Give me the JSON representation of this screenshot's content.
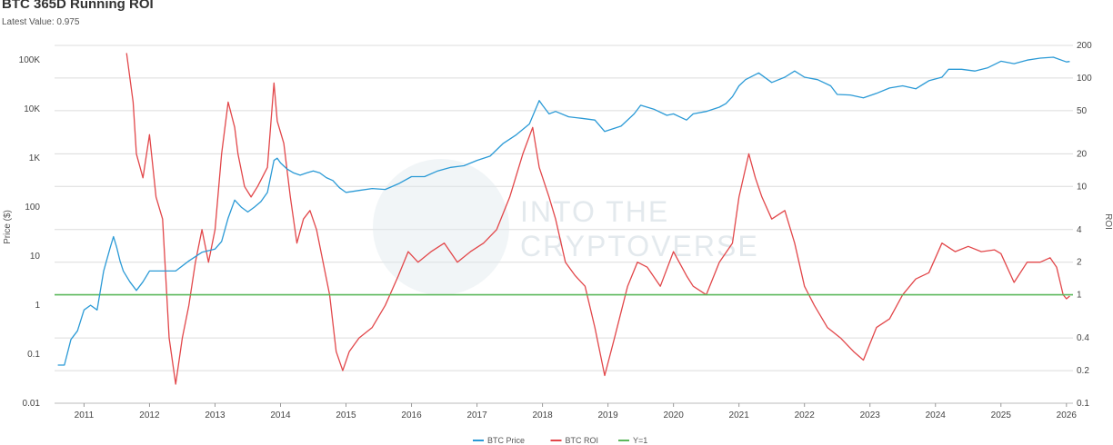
{
  "header": {
    "title": "BTC 365D Running ROI",
    "subtitle": "Latest Value: 0.975"
  },
  "watermark": {
    "line1": "INTO THE",
    "line2": "CRYPTOVERSE"
  },
  "chart_data": {
    "type": "line",
    "title": "BTC 365D Running ROI",
    "left_axis": {
      "label": "Price ($)",
      "scale": "log",
      "range": [
        0.01,
        200000
      ],
      "ticks": [
        {
          "value": 0.01,
          "label": "0.01"
        },
        {
          "value": 0.1,
          "label": "0.1"
        },
        {
          "value": 1,
          "label": "1"
        },
        {
          "value": 10,
          "label": "10"
        },
        {
          "value": 100,
          "label": "100"
        },
        {
          "value": 1000,
          "label": "1K"
        },
        {
          "value": 10000,
          "label": "10K"
        },
        {
          "value": 100000,
          "label": "100K"
        }
      ]
    },
    "right_axis": {
      "label": "ROI",
      "scale": "log",
      "range": [
        0.1,
        200
      ],
      "ticks": [
        {
          "value": 0.1,
          "label": "0.1"
        },
        {
          "value": 0.2,
          "label": "0.2"
        },
        {
          "value": 0.4,
          "label": "0.4"
        },
        {
          "value": 1,
          "label": "1"
        },
        {
          "value": 2,
          "label": "2"
        },
        {
          "value": 4,
          "label": "4"
        },
        {
          "value": 10,
          "label": "10"
        },
        {
          "value": 20,
          "label": "20"
        },
        {
          "value": 50,
          "label": "50"
        },
        {
          "value": 100,
          "label": "100"
        },
        {
          "value": 200,
          "label": "200"
        }
      ]
    },
    "x_axis": {
      "range": [
        2010.55,
        2026.1
      ],
      "ticks": [
        "2011",
        "2012",
        "2013",
        "2014",
        "2015",
        "2016",
        "2017",
        "2018",
        "2019",
        "2020",
        "2021",
        "2022",
        "2023",
        "2024",
        "2025",
        "2026"
      ]
    },
    "grid": true,
    "legend_position": "bottom-center",
    "series": [
      {
        "name": "BTC Price",
        "axis": "left",
        "color": "#2b9ad6",
        "x": [
          2010.6,
          2010.7,
          2010.8,
          2010.9,
          2011.0,
          2011.1,
          2011.2,
          2011.3,
          2011.4,
          2011.45,
          2011.5,
          2011.55,
          2011.6,
          2011.7,
          2011.8,
          2011.9,
          2012.0,
          2012.2,
          2012.4,
          2012.6,
          2012.8,
          2013.0,
          2013.1,
          2013.2,
          2013.3,
          2013.4,
          2013.5,
          2013.6,
          2013.7,
          2013.8,
          2013.9,
          2013.95,
          2014.0,
          2014.1,
          2014.2,
          2014.3,
          2014.4,
          2014.5,
          2014.6,
          2014.7,
          2014.8,
          2014.9,
          2015.0,
          2015.2,
          2015.4,
          2015.6,
          2015.8,
          2016.0,
          2016.2,
          2016.4,
          2016.6,
          2016.8,
          2017.0,
          2017.2,
          2017.4,
          2017.6,
          2017.8,
          2017.95,
          2018.0,
          2018.1,
          2018.2,
          2018.4,
          2018.6,
          2018.8,
          2018.95,
          2019.2,
          2019.4,
          2019.5,
          2019.7,
          2019.9,
          2020.0,
          2020.2,
          2020.3,
          2020.5,
          2020.7,
          2020.8,
          2020.9,
          2021.0,
          2021.1,
          2021.3,
          2021.5,
          2021.7,
          2021.85,
          2022.0,
          2022.2,
          2022.4,
          2022.5,
          2022.7,
          2022.9,
          2023.1,
          2023.3,
          2023.5,
          2023.7,
          2023.9,
          2024.1,
          2024.2,
          2024.4,
          2024.6,
          2024.8,
          2025.0,
          2025.2,
          2025.4,
          2025.6,
          2025.8,
          2026.0,
          2026.05
        ],
        "y": [
          0.06,
          0.06,
          0.2,
          0.3,
          0.8,
          1,
          0.8,
          5,
          15,
          25,
          15,
          8,
          5,
          3,
          2,
          3,
          5,
          5,
          5,
          8,
          12,
          14,
          20,
          60,
          140,
          100,
          80,
          100,
          130,
          200,
          900,
          1000,
          800,
          600,
          500,
          450,
          500,
          550,
          500,
          400,
          350,
          250,
          200,
          220,
          240,
          230,
          300,
          420,
          420,
          550,
          650,
          700,
          900,
          1100,
          2000,
          3000,
          5000,
          15000,
          12000,
          8000,
          9000,
          7000,
          6500,
          6000,
          3500,
          4500,
          8000,
          12000,
          10000,
          7500,
          8000,
          6000,
          8000,
          9000,
          11000,
          13000,
          18000,
          30000,
          40000,
          55000,
          35000,
          45000,
          60000,
          45000,
          40000,
          30000,
          20000,
          19500,
          17000,
          21000,
          27000,
          30000,
          26000,
          38000,
          45000,
          65000,
          65000,
          60000,
          70000,
          95000,
          85000,
          100000,
          110000,
          115000,
          92000,
          94000
        ]
      },
      {
        "name": "BTC ROI",
        "axis": "right",
        "color": "#e2474a",
        "x": [
          2011.65,
          2011.75,
          2011.8,
          2011.9,
          2012.0,
          2012.1,
          2012.2,
          2012.3,
          2012.4,
          2012.5,
          2012.6,
          2012.7,
          2012.8,
          2012.9,
          2013.0,
          2013.1,
          2013.2,
          2013.3,
          2013.35,
          2013.45,
          2013.55,
          2013.65,
          2013.8,
          2013.9,
          2013.95,
          2014.05,
          2014.15,
          2014.25,
          2014.35,
          2014.45,
          2014.55,
          2014.65,
          2014.75,
          2014.85,
          2014.95,
          2015.05,
          2015.2,
          2015.4,
          2015.6,
          2015.8,
          2015.95,
          2016.1,
          2016.3,
          2016.5,
          2016.7,
          2016.9,
          2017.1,
          2017.3,
          2017.5,
          2017.7,
          2017.85,
          2017.95,
          2018.1,
          2018.2,
          2018.35,
          2018.5,
          2018.65,
          2018.8,
          2018.95,
          2019.1,
          2019.3,
          2019.45,
          2019.6,
          2019.8,
          2020.0,
          2020.2,
          2020.3,
          2020.5,
          2020.7,
          2020.9,
          2021.0,
          2021.15,
          2021.25,
          2021.35,
          2021.5,
          2021.7,
          2021.85,
          2022.0,
          2022.15,
          2022.35,
          2022.55,
          2022.75,
          2022.9,
          2023.1,
          2023.3,
          2023.5,
          2023.7,
          2023.9,
          2024.1,
          2024.3,
          2024.5,
          2024.7,
          2024.9,
          2025.0,
          2025.2,
          2025.4,
          2025.6,
          2025.75,
          2025.85,
          2025.95,
          2026.0,
          2026.05
        ],
        "y": [
          170,
          60,
          20,
          12,
          30,
          8,
          5,
          0.4,
          0.15,
          0.4,
          0.8,
          2,
          4,
          2,
          4,
          20,
          60,
          35,
          20,
          10,
          8,
          10,
          15,
          90,
          40,
          25,
          8,
          3,
          5,
          6,
          4,
          2,
          1,
          0.3,
          0.2,
          0.3,
          0.4,
          0.5,
          0.8,
          1.5,
          2.5,
          2,
          2.5,
          3,
          2,
          2.5,
          3,
          4,
          8,
          20,
          35,
          15,
          8,
          5,
          2,
          1.5,
          1.2,
          0.5,
          0.18,
          0.4,
          1.2,
          2,
          1.8,
          1.2,
          2.5,
          1.5,
          1.2,
          1,
          2,
          3,
          8,
          20,
          12,
          8,
          5,
          6,
          3,
          1.2,
          0.8,
          0.5,
          0.4,
          0.3,
          0.25,
          0.5,
          0.6,
          1,
          1.4,
          1.6,
          3,
          2.5,
          2.8,
          2.5,
          2.6,
          2.4,
          1.3,
          2,
          2,
          2.2,
          1.8,
          1.0,
          0.92,
          0.975
        ]
      },
      {
        "name": "Y=1",
        "axis": "right",
        "color": "#5cb85c",
        "x": [
          2010.55,
          2026.1
        ],
        "y": [
          1,
          1
        ]
      }
    ]
  }
}
